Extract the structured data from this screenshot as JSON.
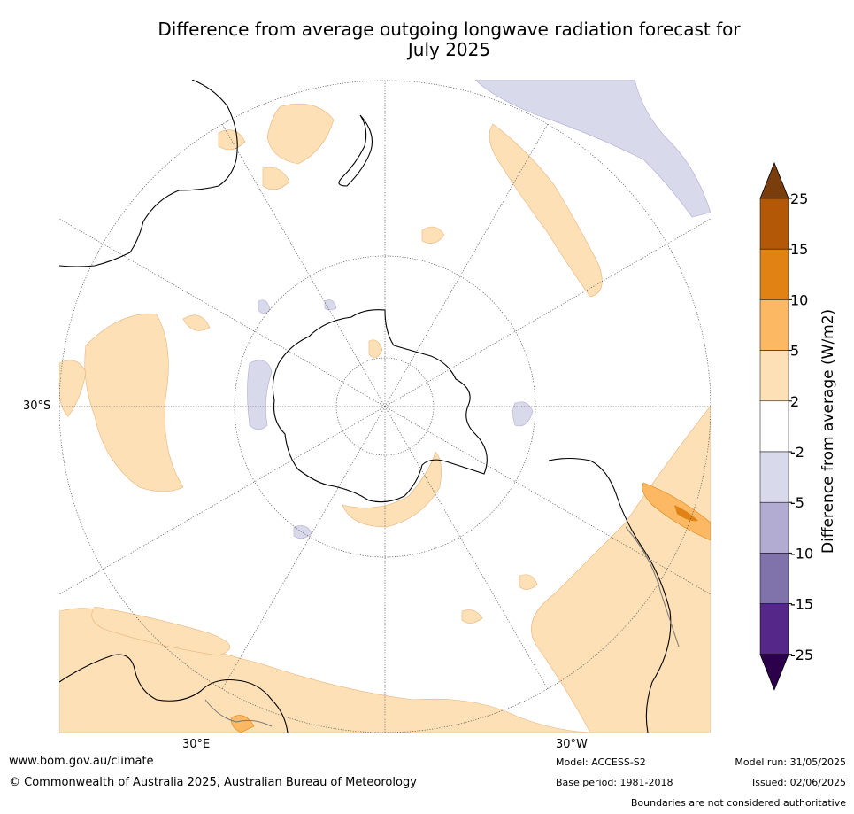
{
  "title_line1": "Difference from average outgoing longwave radiation forecast for",
  "title_line2": "July 2025",
  "map": {
    "lat_label": "30°S",
    "lon_label_left": "30°E",
    "lon_label_right": "30°W"
  },
  "colorbar": {
    "title": "Difference from average (W/m2)",
    "ticks": [
      "25",
      "15",
      "10",
      "5",
      "2",
      "-2",
      "-5",
      "-10",
      "-15",
      "-25"
    ],
    "colors": [
      "#7a3e0d",
      "#b35806",
      "#e08214",
      "#fdb863",
      "#fee0b6",
      "#ffffff",
      "#d8daeb",
      "#b2abd2",
      "#8073ac",
      "#542788",
      "#2d004b"
    ]
  },
  "footer": {
    "website": "www.bom.gov.au/climate",
    "copyright": "© Commonwealth of Australia 2025, Australian Bureau of Meteorology",
    "model": "Model: ACCESS-S2",
    "base_period": "Base period: 1981-2018",
    "model_run": "Model run: 31/05/2025",
    "issued": "Issued: 02/06/2025",
    "disclaimer": "Boundaries are not considered authoritative"
  }
}
